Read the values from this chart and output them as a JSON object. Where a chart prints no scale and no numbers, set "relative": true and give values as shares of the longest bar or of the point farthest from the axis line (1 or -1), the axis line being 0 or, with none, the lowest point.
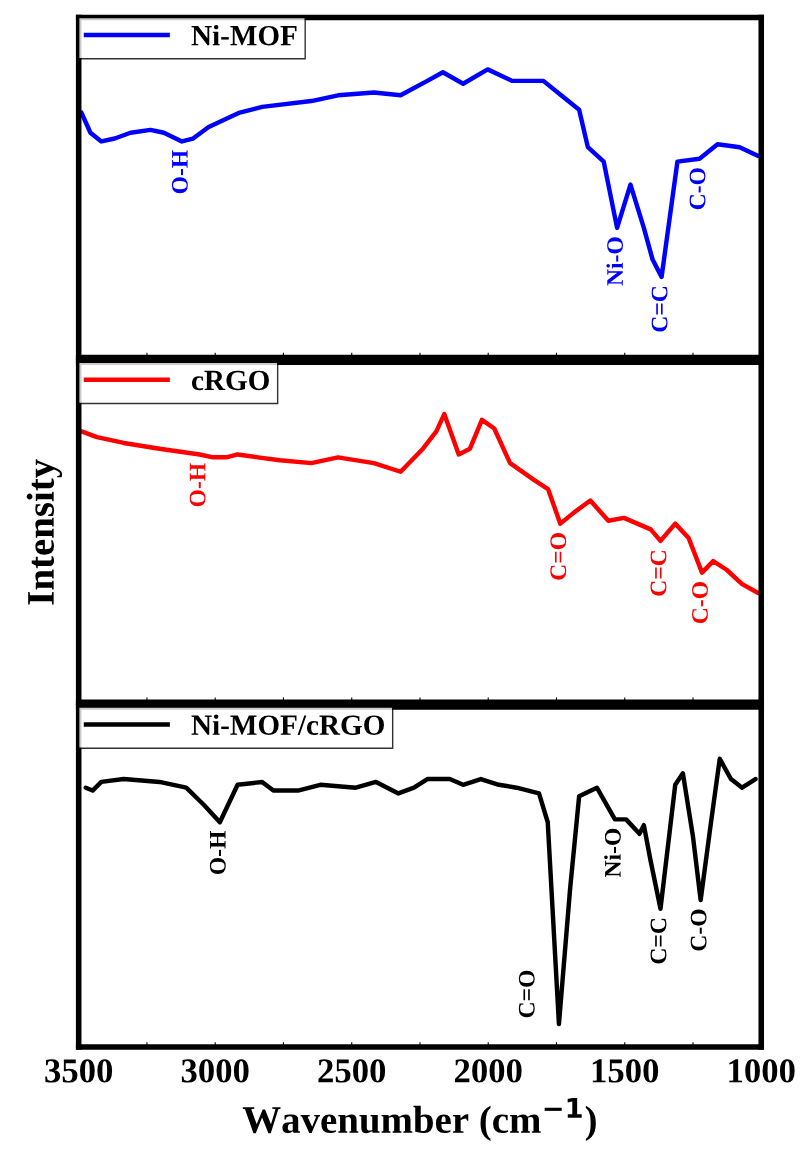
{
  "chart_data": [
    {
      "type": "line",
      "relative": true,
      "xlim": [
        3500,
        1000
      ],
      "tick_labels": false,
      "legend": "top left",
      "grid": false,
      "xticks": [
        {
          "value": 3500,
          "label": null
        },
        {
          "value": 3250,
          "label": null
        },
        {
          "value": 3000,
          "label": null
        },
        {
          "value": 2750,
          "label": null
        },
        {
          "value": 2500,
          "label": null
        },
        {
          "value": 2250,
          "label": null
        },
        {
          "value": 2000,
          "label": null
        },
        {
          "value": 1750,
          "label": null
        },
        {
          "value": 1500,
          "label": null
        },
        {
          "value": 1250,
          "label": null
        },
        {
          "value": 1000,
          "label": null
        }
      ],
      "series": [
        {
          "name": "Ni-MOF",
          "color": "#0000ff",
          "x": [
            3490,
            3457,
            3417,
            3368,
            3310,
            3237,
            3188,
            3122,
            3081,
            3024,
            2910,
            2828,
            2648,
            2550,
            2419,
            2321,
            2223,
            2166,
            2092,
            2002,
            1912,
            1798,
            1733,
            1667,
            1635,
            1577,
            1528,
            1479,
            1430,
            1398,
            1365,
            1307,
            1226,
            1160,
            1079,
            1013
          ],
          "values": [
            0.85,
            0.78,
            0.75,
            0.76,
            0.78,
            0.79,
            0.78,
            0.75,
            0.76,
            0.8,
            0.85,
            0.87,
            0.89,
            0.91,
            0.92,
            0.91,
            0.96,
            0.99,
            0.95,
            1.0,
            0.96,
            0.96,
            0.91,
            0.86,
            0.73,
            0.68,
            0.45,
            0.6,
            0.45,
            0.34,
            0.28,
            0.68,
            0.69,
            0.74,
            0.73,
            0.7
          ]
        }
      ],
      "annotations": [
        {
          "text": "O-H",
          "x": 3122,
          "y": 0.75
        },
        {
          "text": "Ni-O",
          "x": 1528,
          "y": 0.45
        },
        {
          "text": "C=C",
          "x": 1365,
          "y": 0.28
        },
        {
          "text": "C-O",
          "x": 1226,
          "y": 0.69
        }
      ]
    },
    {
      "type": "line",
      "relative": true,
      "xlim": [
        3500,
        1000
      ],
      "tick_labels": false,
      "legend": "top left",
      "grid": false,
      "ylabel": "Intensity",
      "xticks": [
        {
          "value": 3500,
          "label": null
        },
        {
          "value": 3250,
          "label": null
        },
        {
          "value": 3000,
          "label": null
        },
        {
          "value": 2750,
          "label": null
        },
        {
          "value": 2500,
          "label": null
        },
        {
          "value": 2250,
          "label": null
        },
        {
          "value": 2000,
          "label": null
        },
        {
          "value": 1750,
          "label": null
        },
        {
          "value": 1500,
          "label": null
        },
        {
          "value": 1250,
          "label": null
        },
        {
          "value": 1000,
          "label": null
        }
      ],
      "series": [
        {
          "name": "cRGO",
          "color": "#ff0000",
          "x": [
            3490,
            3433,
            3335,
            3204,
            3057,
            3008,
            2959,
            2918,
            2844,
            2763,
            2648,
            2550,
            2419,
            2321,
            2239,
            2190,
            2161,
            2108,
            2067,
            2023,
            1978,
            1920,
            1830,
            1781,
            1736,
            1684,
            1626,
            1560,
            1503,
            1405,
            1369,
            1315,
            1266,
            1217,
            1176,
            1127,
            1070,
            1013
          ],
          "values": [
            0.94,
            0.92,
            0.9,
            0.88,
            0.86,
            0.85,
            0.85,
            0.86,
            0.85,
            0.84,
            0.83,
            0.85,
            0.83,
            0.8,
            0.88,
            0.94,
            1.0,
            0.86,
            0.88,
            0.98,
            0.95,
            0.83,
            0.77,
            0.74,
            0.62,
            0.66,
            0.7,
            0.63,
            0.64,
            0.6,
            0.56,
            0.62,
            0.57,
            0.45,
            0.49,
            0.46,
            0.41,
            0.38
          ]
        }
      ],
      "annotations": [
        {
          "text": "O-H",
          "x": 3057,
          "y": 0.86
        },
        {
          "text": "C=O",
          "x": 1736,
          "y": 0.62
        },
        {
          "text": "C=C",
          "x": 1369,
          "y": 0.56
        },
        {
          "text": "C-O",
          "x": 1217,
          "y": 0.45
        }
      ]
    },
    {
      "type": "line",
      "relative": true,
      "xlim": [
        3500,
        1000
      ],
      "tick_labels": "x",
      "legend": "top left",
      "grid": false,
      "xlabel": "Wavenumber (cm$^{−1}$)",
      "xticks": [
        3500,
        {
          "value": 3250,
          "label": null
        },
        3000,
        {
          "value": 2750,
          "label": null
        },
        2500,
        {
          "value": 2250,
          "label": null
        },
        2000,
        {
          "value": 1750,
          "label": null
        },
        1500,
        {
          "value": 1250,
          "label": null
        },
        1000
      ],
      "series": [
        {
          "name": "Ni-MOF/cRGO",
          "color": "#000000",
          "x": [
            3474,
            3449,
            3417,
            3335,
            3204,
            3106,
            3041,
            2983,
            2918,
            2828,
            2787,
            2697,
            2615,
            2485,
            2411,
            2329,
            2272,
            2223,
            2141,
            2092,
            2027,
            1961,
            1896,
            1814,
            1782,
            1741,
            1700,
            1667,
            1602,
            1536,
            1495,
            1446,
            1430,
            1406,
            1369,
            1315,
            1287,
            1250,
            1222,
            1184,
            1152,
            1111,
            1070,
            1021
          ],
          "values": [
            0.9,
            0.89,
            0.92,
            0.93,
            0.92,
            0.9,
            0.84,
            0.78,
            0.91,
            0.92,
            0.89,
            0.89,
            0.91,
            0.9,
            0.92,
            0.88,
            0.9,
            0.93,
            0.93,
            0.91,
            0.93,
            0.91,
            0.9,
            0.88,
            0.78,
            0.08,
            0.55,
            0.87,
            0.9,
            0.79,
            0.79,
            0.74,
            0.77,
            0.65,
            0.48,
            0.91,
            0.95,
            0.73,
            0.51,
            0.78,
            1.0,
            0.93,
            0.9,
            0.93
          ]
        }
      ],
      "annotations": [
        {
          "text": "O-H",
          "x": 2983,
          "y": 0.78
        },
        {
          "text": "C=O",
          "x": 1741,
          "y": 0.08
        },
        {
          "text": "Ni-O",
          "x": 1536,
          "y": 0.79
        },
        {
          "text": "C=C",
          "x": 1369,
          "y": 0.48
        },
        {
          "text": "C-O",
          "x": 1222,
          "y": 0.51
        }
      ]
    }
  ]
}
